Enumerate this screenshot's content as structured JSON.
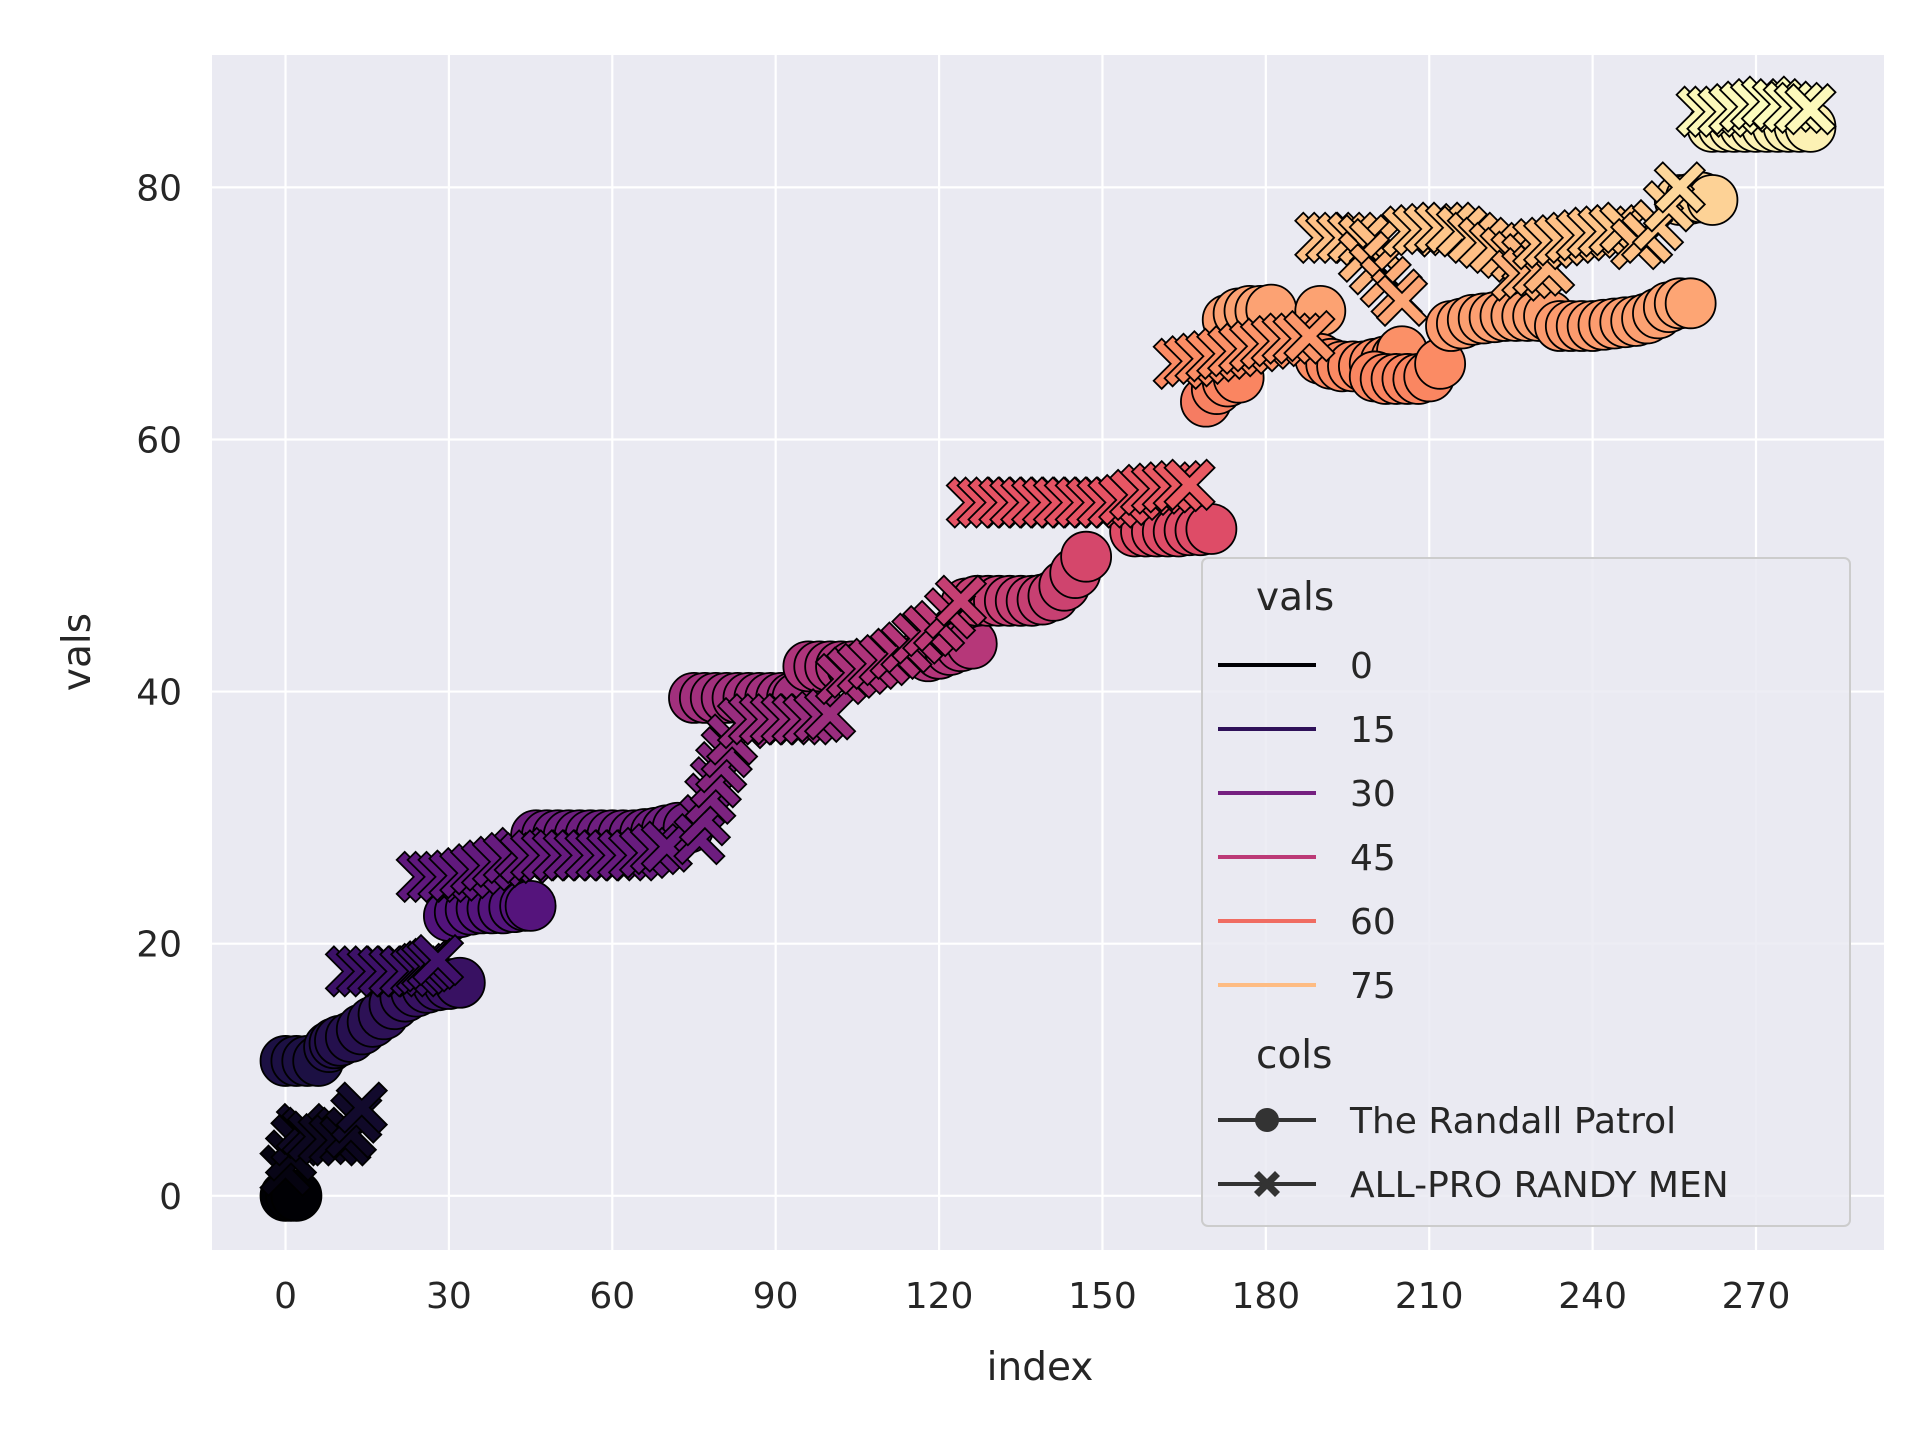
{
  "chart_data": {
    "type": "scatter",
    "xlabel": "index",
    "ylabel": "vals",
    "xlim": [
      -13.5,
      293.5
    ],
    "ylim": [
      -4.3,
      90.5
    ],
    "xticks": [
      0,
      30,
      60,
      90,
      120,
      150,
      180,
      210,
      240,
      270
    ],
    "yticks": [
      0,
      20,
      40,
      60,
      80
    ],
    "grid": true,
    "background": "#eaeaf2",
    "palette": "magma",
    "color_range": [
      0,
      87
    ],
    "legend": {
      "placement": "lower-right",
      "hue_title": "vals",
      "hue_entries": [
        {
          "label": "0",
          "value": 0,
          "color": "#000004"
        },
        {
          "label": "15",
          "value": 15,
          "color": "#2c115f"
        },
        {
          "label": "30",
          "value": 30,
          "color": "#721f81"
        },
        {
          "label": "45",
          "value": 45,
          "color": "#b73779"
        },
        {
          "label": "60",
          "value": 60,
          "color": "#f1605d"
        },
        {
          "label": "75",
          "value": 75,
          "color": "#feb078"
        }
      ],
      "style_title": "cols",
      "style_entries": [
        {
          "label": "The Randall Patrol",
          "marker": "circle"
        },
        {
          "label": "ALL-PRO RANDY MEN",
          "marker": "x"
        }
      ]
    },
    "series": [
      {
        "name": "The Randall Patrol",
        "marker": "circle",
        "points": [
          [
            0,
            0
          ],
          [
            1,
            0
          ],
          [
            2,
            0
          ],
          [
            0,
            10.7
          ],
          [
            2,
            10.7
          ],
          [
            4,
            10.7
          ],
          [
            6,
            10.7
          ],
          [
            8,
            11.8
          ],
          [
            9,
            12.1
          ],
          [
            10,
            12.3
          ],
          [
            12,
            12.6
          ],
          [
            14,
            13.2
          ],
          [
            16,
            13.8
          ],
          [
            18,
            14.4
          ],
          [
            20,
            15.2
          ],
          [
            22,
            15.8
          ],
          [
            24,
            16.2
          ],
          [
            26,
            16.5
          ],
          [
            28,
            16.7
          ],
          [
            30,
            16.8
          ],
          [
            32,
            16.9
          ],
          [
            30,
            22.2
          ],
          [
            32,
            22.5
          ],
          [
            34,
            22.7
          ],
          [
            36,
            22.8
          ],
          [
            38,
            22.8
          ],
          [
            40,
            22.8
          ],
          [
            42,
            22.9
          ],
          [
            44,
            23.0
          ],
          [
            45,
            23.0
          ],
          [
            46,
            28.6
          ],
          [
            48,
            28.6
          ],
          [
            50,
            28.6
          ],
          [
            52,
            28.6
          ],
          [
            54,
            28.6
          ],
          [
            56,
            28.6
          ],
          [
            58,
            28.6
          ],
          [
            60,
            28.6
          ],
          [
            62,
            28.6
          ],
          [
            64,
            28.6
          ],
          [
            66,
            28.7
          ],
          [
            68,
            28.8
          ],
          [
            70,
            29.0
          ],
          [
            72,
            29.2
          ],
          [
            74,
            29.2
          ],
          [
            75,
            39.5
          ],
          [
            77,
            39.5
          ],
          [
            79,
            39.5
          ],
          [
            81,
            39.5
          ],
          [
            83,
            39.5
          ],
          [
            85,
            39.5
          ],
          [
            87,
            39.5
          ],
          [
            89,
            39.5
          ],
          [
            91,
            39.5
          ],
          [
            93,
            39.5
          ],
          [
            94,
            39.5
          ],
          [
            96,
            42.0
          ],
          [
            98,
            42.0
          ],
          [
            100,
            42.0
          ],
          [
            102,
            42.0
          ],
          [
            104,
            42.0
          ],
          [
            106,
            42.0
          ],
          [
            118,
            42.8
          ],
          [
            120,
            43.0
          ],
          [
            122,
            43.3
          ],
          [
            124,
            43.6
          ],
          [
            126,
            43.8
          ],
          [
            125,
            47.0
          ],
          [
            127,
            47.2
          ],
          [
            129,
            47.2
          ],
          [
            131,
            47.2
          ],
          [
            133,
            47.2
          ],
          [
            135,
            47.2
          ],
          [
            137,
            47.2
          ],
          [
            139,
            47.3
          ],
          [
            141,
            47.6
          ],
          [
            143,
            48.4
          ],
          [
            145,
            49.4
          ],
          [
            147,
            50.7
          ],
          [
            156,
            52.7
          ],
          [
            158,
            52.7
          ],
          [
            160,
            52.7
          ],
          [
            162,
            52.7
          ],
          [
            164,
            52.7
          ],
          [
            166,
            52.8
          ],
          [
            168,
            52.8
          ],
          [
            170,
            52.9
          ],
          [
            169,
            63.0
          ],
          [
            171,
            64.0
          ],
          [
            173,
            64.6
          ],
          [
            175,
            64.9
          ],
          [
            173,
            69.5
          ],
          [
            175,
            70.0
          ],
          [
            177,
            70.2
          ],
          [
            179,
            70.2
          ],
          [
            181,
            70.3
          ],
          [
            190,
            70.2
          ],
          [
            190,
            66.4
          ],
          [
            192,
            66.0
          ],
          [
            194,
            65.8
          ],
          [
            196,
            65.8
          ],
          [
            198,
            65.8
          ],
          [
            200,
            66.0
          ],
          [
            202,
            66.2
          ],
          [
            204,
            66.5
          ],
          [
            205,
            67.0
          ],
          [
            200,
            65.0
          ],
          [
            202,
            64.8
          ],
          [
            204,
            64.8
          ],
          [
            206,
            64.8
          ],
          [
            208,
            64.8
          ],
          [
            210,
            65.0
          ],
          [
            212,
            66.0
          ],
          [
            214,
            69.0
          ],
          [
            216,
            69.2
          ],
          [
            218,
            69.5
          ],
          [
            220,
            69.6
          ],
          [
            222,
            69.7
          ],
          [
            224,
            69.8
          ],
          [
            226,
            69.8
          ],
          [
            228,
            69.8
          ],
          [
            230,
            69.8
          ],
          [
            232,
            69.8
          ],
          [
            234,
            69.0
          ],
          [
            236,
            69.0
          ],
          [
            238,
            69.0
          ],
          [
            240,
            69.0
          ],
          [
            242,
            69.1
          ],
          [
            244,
            69.2
          ],
          [
            246,
            69.3
          ],
          [
            248,
            69.4
          ],
          [
            250,
            69.6
          ],
          [
            252,
            70.0
          ],
          [
            254,
            70.5
          ],
          [
            256,
            70.8
          ],
          [
            258,
            70.8
          ],
          [
            256,
            79.0
          ],
          [
            258,
            79.1
          ],
          [
            260,
            79.2
          ],
          [
            262,
            79.0
          ],
          [
            262,
            84.8
          ],
          [
            264,
            84.8
          ],
          [
            266,
            84.8
          ],
          [
            268,
            84.8
          ],
          [
            270,
            84.8
          ],
          [
            272,
            84.8
          ],
          [
            274,
            84.8
          ],
          [
            276,
            84.8
          ],
          [
            278,
            84.8
          ],
          [
            280,
            84.8
          ]
        ]
      },
      {
        "name": "ALL-PRO RANDY MEN",
        "marker": "x",
        "points": [
          [
            0,
            2.0
          ],
          [
            1,
            3.2
          ],
          [
            2,
            4.4
          ],
          [
            3,
            5.3
          ],
          [
            4,
            5.0
          ],
          [
            5,
            4.7
          ],
          [
            7,
            4.5
          ],
          [
            9,
            4.4
          ],
          [
            11,
            4.4
          ],
          [
            12,
            5.0
          ],
          [
            13,
            6.2
          ],
          [
            14,
            7.0
          ],
          [
            12,
            17.8
          ],
          [
            14,
            17.8
          ],
          [
            16,
            17.8
          ],
          [
            18,
            17.8
          ],
          [
            20,
            17.8
          ],
          [
            22,
            17.8
          ],
          [
            24,
            17.8
          ],
          [
            25,
            18.0
          ],
          [
            26,
            18.2
          ],
          [
            27,
            18.4
          ],
          [
            28,
            18.7
          ],
          [
            25,
            25.3
          ],
          [
            27,
            25.3
          ],
          [
            29,
            25.3
          ],
          [
            31,
            25.4
          ],
          [
            33,
            25.6
          ],
          [
            35,
            25.9
          ],
          [
            37,
            26.2
          ],
          [
            39,
            26.5
          ],
          [
            41,
            26.8
          ],
          [
            43,
            27.2
          ],
          [
            44,
            26.8
          ],
          [
            46,
            27.0
          ],
          [
            48,
            27.0
          ],
          [
            50,
            27.0
          ],
          [
            52,
            27.0
          ],
          [
            54,
            27.0
          ],
          [
            56,
            27.0
          ],
          [
            58,
            27.0
          ],
          [
            60,
            27.0
          ],
          [
            62,
            27.0
          ],
          [
            64,
            27.0
          ],
          [
            66,
            27.2
          ],
          [
            68,
            27.5
          ],
          [
            70,
            27.7
          ],
          [
            76,
            28.3
          ],
          [
            77,
            29.8
          ],
          [
            78,
            31.5
          ],
          [
            79,
            32.8
          ],
          [
            80,
            34.0
          ],
          [
            81,
            35.2
          ],
          [
            82,
            36.2
          ],
          [
            84,
            37.5
          ],
          [
            86,
            37.8
          ],
          [
            88,
            37.8
          ],
          [
            90,
            37.8
          ],
          [
            92,
            37.8
          ],
          [
            94,
            37.8
          ],
          [
            96,
            37.8
          ],
          [
            98,
            38.0
          ],
          [
            100,
            38.2
          ],
          [
            102,
            41.0
          ],
          [
            104,
            41.5
          ],
          [
            106,
            41.8
          ],
          [
            108,
            42.2
          ],
          [
            110,
            42.5
          ],
          [
            112,
            43.0
          ],
          [
            114,
            43.5
          ],
          [
            116,
            44.2
          ],
          [
            118,
            44.8
          ],
          [
            120,
            45.2
          ],
          [
            122,
            46.2
          ],
          [
            124,
            47.2
          ],
          [
            126,
            55.0
          ],
          [
            128,
            55.0
          ],
          [
            130,
            55.0
          ],
          [
            132,
            55.0
          ],
          [
            134,
            55.0
          ],
          [
            136,
            55.0
          ],
          [
            138,
            55.0
          ],
          [
            140,
            55.0
          ],
          [
            142,
            55.0
          ],
          [
            144,
            55.0
          ],
          [
            146,
            55.0
          ],
          [
            148,
            55.0
          ],
          [
            150,
            55.0
          ],
          [
            152,
            55.0
          ],
          [
            154,
            55.2
          ],
          [
            156,
            55.6
          ],
          [
            158,
            56.0
          ],
          [
            160,
            56.1
          ],
          [
            162,
            56.2
          ],
          [
            164,
            56.3
          ],
          [
            166,
            56.4
          ],
          [
            164,
            66.0
          ],
          [
            166,
            66.2
          ],
          [
            168,
            66.4
          ],
          [
            170,
            66.6
          ],
          [
            172,
            66.8
          ],
          [
            174,
            67.0
          ],
          [
            176,
            67.2
          ],
          [
            178,
            67.4
          ],
          [
            180,
            67.6
          ],
          [
            182,
            67.8
          ],
          [
            184,
            68.0
          ],
          [
            186,
            68.0
          ],
          [
            188,
            68.2
          ],
          [
            190,
            76.0
          ],
          [
            192,
            76.0
          ],
          [
            194,
            76.0
          ],
          [
            196,
            76.0
          ],
          [
            198,
            75.8
          ],
          [
            200,
            75.5
          ],
          [
            198,
            74.5
          ],
          [
            200,
            73.5
          ],
          [
            202,
            72.5
          ],
          [
            204,
            71.5
          ],
          [
            205,
            71.0
          ],
          [
            206,
            76.5
          ],
          [
            208,
            76.6
          ],
          [
            210,
            76.7
          ],
          [
            212,
            76.8
          ],
          [
            214,
            76.8
          ],
          [
            216,
            76.5
          ],
          [
            218,
            76.0
          ],
          [
            220,
            75.6
          ],
          [
            222,
            75.2
          ],
          [
            224,
            74.8
          ],
          [
            226,
            74.5
          ],
          [
            228,
            74.3
          ],
          [
            226,
            73.0
          ],
          [
            228,
            73.2
          ],
          [
            230,
            73.4
          ],
          [
            232,
            73.6
          ],
          [
            230,
            75.5
          ],
          [
            232,
            75.6
          ],
          [
            234,
            75.8
          ],
          [
            236,
            76.0
          ],
          [
            238,
            76.2
          ],
          [
            240,
            76.4
          ],
          [
            242,
            76.5
          ],
          [
            244,
            76.6
          ],
          [
            246,
            76.8
          ],
          [
            248,
            75.5
          ],
          [
            250,
            76.0
          ],
          [
            252,
            77.0
          ],
          [
            254,
            78.5
          ],
          [
            256,
            80.0
          ],
          [
            260,
            86.0
          ],
          [
            262,
            86.0
          ],
          [
            264,
            86.0
          ],
          [
            266,
            86.2
          ],
          [
            268,
            86.4
          ],
          [
            270,
            86.6
          ],
          [
            272,
            86.8
          ],
          [
            274,
            86.6
          ],
          [
            276,
            86.4
          ],
          [
            278,
            86.3
          ],
          [
            280,
            86.2
          ]
        ]
      }
    ]
  }
}
